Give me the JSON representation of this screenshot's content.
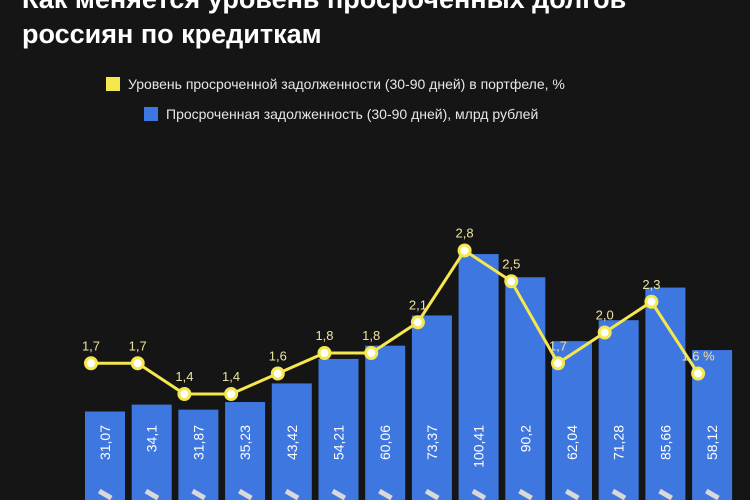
{
  "title_line1": "Как меняется уровень просроченных долгов",
  "title_line2": "россиян по кредиткам",
  "colors": {
    "background": "#151515",
    "bar": "#3f77e0",
    "line": "#f5e84e",
    "line_label": "#ece3a0",
    "bar_label": "#ffffff",
    "axis_label": "#d9d9d9"
  },
  "chart_data": {
    "type": "bar",
    "categories": [
      "",
      "",
      "",
      "",
      "",
      "",
      "",
      "",
      "",
      "",
      "",
      "",
      "",
      ""
    ],
    "series": [
      {
        "name": "Просроченная задолженность (30-90 дней), млрд рублей",
        "type": "bar",
        "values": [
          31.07,
          34.1,
          31.87,
          35.23,
          43.42,
          54.21,
          60.06,
          73.37,
          100.41,
          90.2,
          62.04,
          71.28,
          85.66,
          58.12
        ],
        "labels": [
          "31,07",
          "34,1",
          "31,87",
          "35,23",
          "43,42",
          "54,21",
          "60,06",
          "73,37",
          "100,41",
          "90,2",
          "62,04",
          "71,28",
          "85,66",
          "58,12"
        ]
      },
      {
        "name": "Уровень просроченной задолженности (30-90 дней) в портфеле, %",
        "type": "line",
        "values": [
          1.7,
          1.7,
          1.4,
          1.4,
          1.6,
          1.8,
          1.8,
          2.1,
          2.8,
          2.5,
          1.7,
          2.0,
          2.3,
          1.6
        ],
        "labels": [
          "1,7",
          "1,7",
          "1,4",
          "1,4",
          "1,6",
          "1,8",
          "1,8",
          "2,1",
          "2,8",
          "2,5",
          "1,7",
          "2,0",
          "2,3",
          "1,6 %"
        ]
      }
    ],
    "legend_position": "top",
    "grid": false
  }
}
